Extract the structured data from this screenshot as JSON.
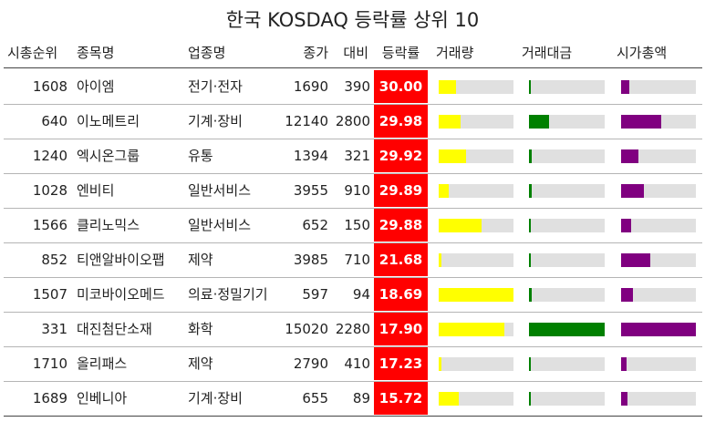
{
  "title": "한국 KOSDAQ 등락률 상위 10",
  "columns": [
    "시총순위",
    "종목명",
    "업종명",
    "종가",
    "대비",
    "등락률",
    "거래량",
    "거래대금",
    "시가총액"
  ],
  "colors": {
    "rate_bg": "#ff0000",
    "volume": "#ffff00",
    "value": "#008000",
    "mcap": "#800080",
    "track": "#e0e0e0"
  },
  "chart_data": {
    "type": "table",
    "title": "한국 KOSDAQ 등락률 상위 10",
    "rows": [
      {
        "rank": "1608",
        "name": "아이엠",
        "sector": "전기·전자",
        "close": "1690",
        "change": "390",
        "rate": "30.00",
        "volume_ratio": 0.23,
        "value_ratio": 0.03,
        "mcap_ratio": 0.11
      },
      {
        "rank": "640",
        "name": "이노메트리",
        "sector": "기계·장비",
        "close": "12140",
        "change": "2800",
        "rate": "29.98",
        "volume_ratio": 0.29,
        "value_ratio": 0.26,
        "mcap_ratio": 0.54
      },
      {
        "rank": "1240",
        "name": "엑시온그룹",
        "sector": "유통",
        "close": "1394",
        "change": "321",
        "rate": "29.92",
        "volume_ratio": 0.37,
        "value_ratio": 0.04,
        "mcap_ratio": 0.23
      },
      {
        "rank": "1028",
        "name": "엔비티",
        "sector": "일반서비스",
        "close": "3955",
        "change": "910",
        "rate": "29.89",
        "volume_ratio": 0.14,
        "value_ratio": 0.04,
        "mcap_ratio": 0.31
      },
      {
        "rank": "1566",
        "name": "클리노믹스",
        "sector": "일반서비스",
        "close": "652",
        "change": "150",
        "rate": "29.88",
        "volume_ratio": 0.57,
        "value_ratio": 0.03,
        "mcap_ratio": 0.13
      },
      {
        "rank": "852",
        "name": "티앤알바이오팹",
        "sector": "제약",
        "close": "3985",
        "change": "710",
        "rate": "21.68",
        "volume_ratio": 0.04,
        "value_ratio": 0.01,
        "mcap_ratio": 0.39
      },
      {
        "rank": "1507",
        "name": "미코바이오메드",
        "sector": "의료·정밀기기",
        "close": "597",
        "change": "94",
        "rate": "18.69",
        "volume_ratio": 1.0,
        "value_ratio": 0.04,
        "mcap_ratio": 0.16
      },
      {
        "rank": "331",
        "name": "대진첨단소재",
        "sector": "화학",
        "close": "15020",
        "change": "2280",
        "rate": "17.90",
        "volume_ratio": 0.88,
        "value_ratio": 1.0,
        "mcap_ratio": 1.0
      },
      {
        "rank": "1710",
        "name": "올리패스",
        "sector": "제약",
        "close": "2790",
        "change": "410",
        "rate": "17.23",
        "volume_ratio": 0.04,
        "value_ratio": 0.01,
        "mcap_ratio": 0.07
      },
      {
        "rank": "1689",
        "name": "인베니아",
        "sector": "기계·장비",
        "close": "655",
        "change": "89",
        "rate": "15.72",
        "volume_ratio": 0.27,
        "value_ratio": 0.03,
        "mcap_ratio": 0.08
      }
    ]
  }
}
